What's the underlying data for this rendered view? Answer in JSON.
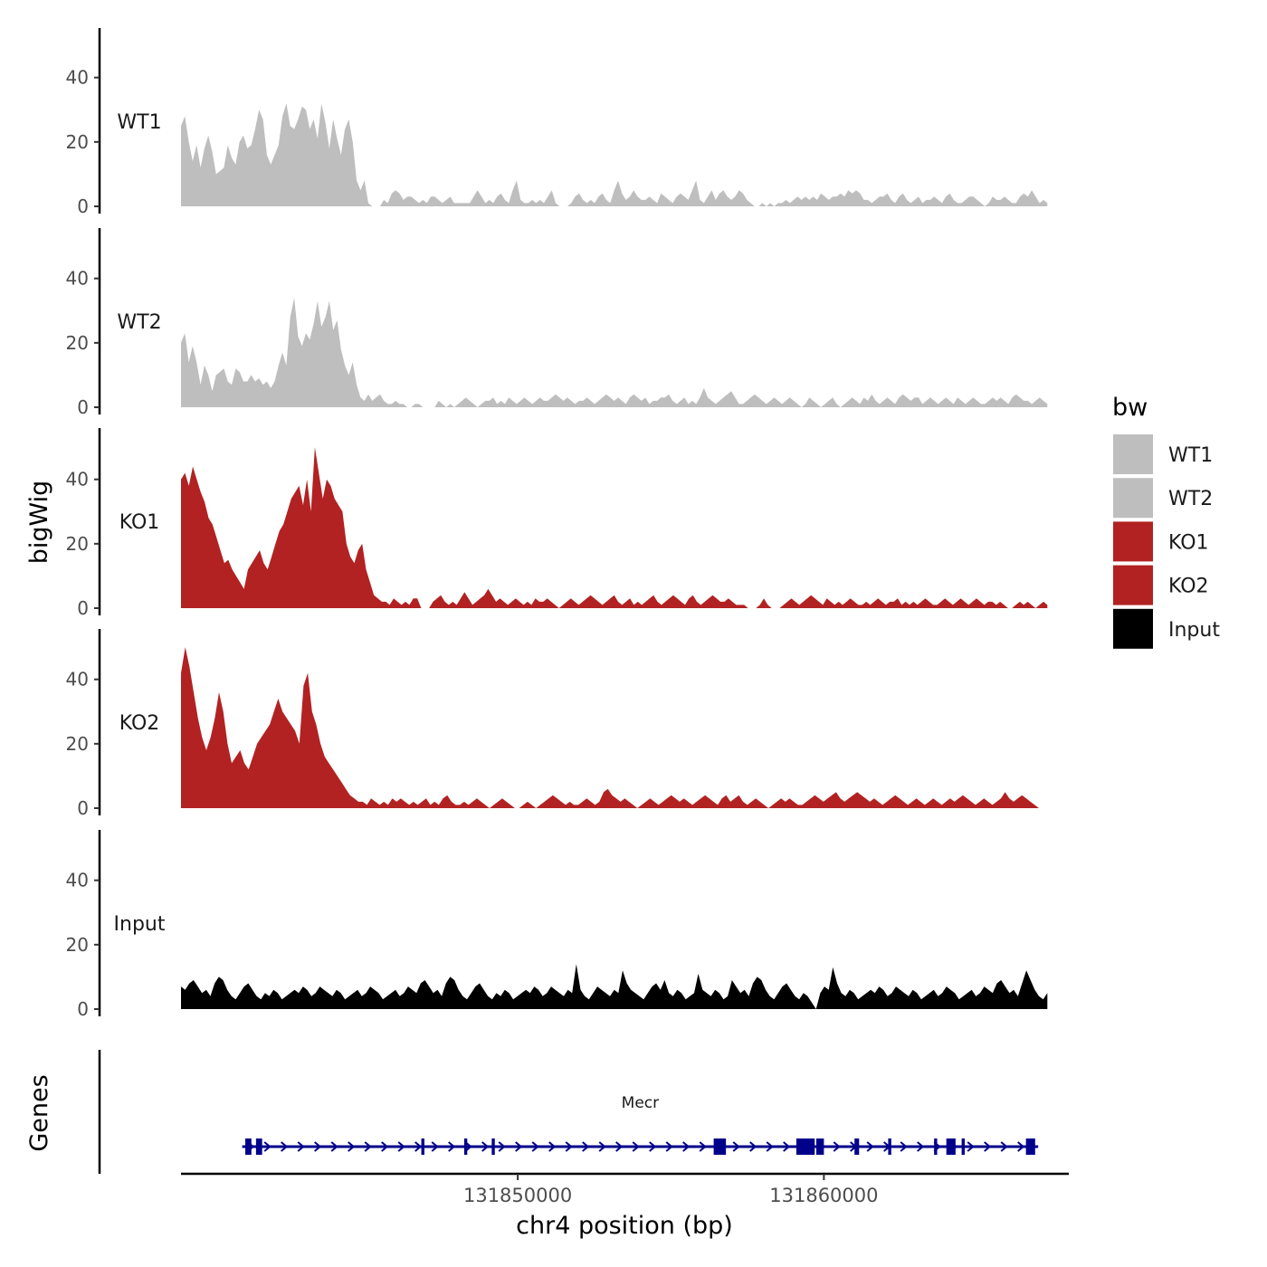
{
  "chart_data": {
    "type": "area",
    "ylabel": "bigWig",
    "xlabel": "chr4 position (bp)",
    "genes_label": "Genes",
    "xlim": [
      131839000,
      131868000
    ],
    "x_start": 131839000,
    "x_end": 131867300,
    "ylim": [
      0,
      55
    ],
    "yticks": [
      0,
      20,
      40
    ],
    "xticks": [
      {
        "value": 131850000,
        "label": "131850000"
      },
      {
        "value": 131860000,
        "label": "131860000"
      }
    ],
    "colors": {
      "WT": "#bebebe",
      "KO": "#b22222",
      "Input": "#000000",
      "gene": "#00008b"
    },
    "legend": {
      "title": "bw",
      "position": "right",
      "items": [
        {
          "label": "WT1",
          "color": "#bebebe"
        },
        {
          "label": "WT2",
          "color": "#bebebe"
        },
        {
          "label": "KO1",
          "color": "#b22222"
        },
        {
          "label": "KO2",
          "color": "#b22222"
        },
        {
          "label": "Input",
          "color": "#000000"
        }
      ]
    },
    "series": [
      {
        "name": "WT1",
        "color": "#bebebe",
        "values": [
          25,
          28,
          20,
          14,
          19,
          12,
          18,
          22,
          17,
          10,
          11,
          12,
          19,
          15,
          13,
          20,
          22,
          18,
          19,
          24,
          30,
          27,
          16,
          13,
          16,
          19,
          28,
          32,
          25,
          24,
          27,
          31,
          30,
          24,
          27,
          21,
          32,
          26,
          18,
          27,
          21,
          16,
          24,
          27,
          20,
          8,
          5,
          8,
          1,
          0,
          0,
          0,
          2,
          1,
          4,
          5,
          4,
          2,
          3,
          3,
          2,
          1,
          2,
          1,
          3,
          3,
          2,
          1,
          2,
          3,
          1,
          1,
          1,
          1,
          1,
          3,
          5,
          3,
          1,
          2,
          1,
          3,
          4,
          2,
          1,
          5,
          8,
          2,
          1,
          1,
          2,
          1,
          2,
          1,
          3,
          5,
          1,
          0,
          0,
          0,
          1,
          3,
          4,
          2,
          1,
          2,
          1,
          3,
          4,
          2,
          1,
          5,
          8,
          4,
          2,
          3,
          5,
          3,
          2,
          2,
          3,
          2,
          1,
          4,
          3,
          2,
          1,
          3,
          4,
          3,
          2,
          5,
          8,
          2,
          1,
          3,
          5,
          2,
          4,
          5,
          3,
          2,
          3,
          5,
          4,
          2,
          1,
          0,
          0,
          1,
          0,
          1,
          0,
          1,
          1,
          2,
          1,
          2,
          3,
          2,
          3,
          2,
          3,
          2,
          4,
          3,
          2,
          3,
          3,
          4,
          3,
          5,
          4,
          5,
          4,
          2,
          2,
          1,
          2,
          3,
          3,
          4,
          2,
          1,
          3,
          4,
          2,
          1,
          2,
          3,
          1,
          2,
          2,
          3,
          2,
          1,
          3,
          4,
          2,
          1,
          1,
          2,
          3,
          3,
          2,
          1,
          0,
          1,
          3,
          2,
          2,
          3,
          2,
          1,
          1,
          3,
          4,
          3,
          5,
          3,
          1,
          2,
          1
        ]
      },
      {
        "name": "WT2",
        "color": "#bebebe",
        "values": [
          20,
          23,
          14,
          19,
          14,
          7,
          13,
          10,
          5,
          10,
          11,
          12,
          8,
          7,
          12,
          11,
          8,
          8,
          10,
          8,
          9,
          7,
          8,
          6,
          8,
          13,
          17,
          13,
          28,
          34,
          22,
          19,
          23,
          21,
          26,
          33,
          25,
          28,
          33,
          24,
          27,
          18,
          13,
          10,
          14,
          7,
          3,
          2,
          4,
          2,
          3,
          4,
          2,
          1,
          1,
          2,
          1,
          1,
          0,
          0,
          1,
          1,
          0,
          0,
          0,
          0,
          2,
          1,
          0,
          1,
          0,
          1,
          2,
          3,
          2,
          1,
          0,
          1,
          2,
          2,
          3,
          1,
          2,
          1,
          3,
          2,
          1,
          2,
          3,
          2,
          1,
          2,
          3,
          2,
          2,
          3,
          4,
          3,
          2,
          3,
          2,
          1,
          2,
          2,
          3,
          2,
          1,
          2,
          3,
          4,
          3,
          2,
          3,
          2,
          1,
          3,
          4,
          3,
          2,
          3,
          1,
          2,
          2,
          3,
          3,
          4,
          2,
          1,
          2,
          3,
          1,
          2,
          1,
          3,
          6,
          3,
          2,
          1,
          2,
          3,
          4,
          5,
          3,
          1,
          1,
          2,
          3,
          4,
          3,
          2,
          1,
          2,
          3,
          2,
          1,
          2,
          3,
          2,
          1,
          0,
          1,
          3,
          2,
          1,
          0,
          1,
          2,
          3,
          1,
          0,
          1,
          2,
          3,
          2,
          1,
          3,
          2,
          4,
          2,
          1,
          2,
          3,
          2,
          1,
          3,
          4,
          3,
          2,
          3,
          3,
          1,
          2,
          3,
          2,
          1,
          2,
          3,
          2,
          1,
          3,
          2,
          1,
          2,
          3,
          2,
          1,
          1,
          2,
          3,
          2,
          3,
          2,
          1,
          3,
          4,
          3,
          2,
          2,
          1,
          2,
          3,
          2,
          1
        ]
      },
      {
        "name": "KO1",
        "color": "#b22222",
        "values": [
          40,
          42,
          38,
          44,
          40,
          36,
          33,
          28,
          26,
          22,
          18,
          14,
          15,
          12,
          10,
          8,
          6,
          12,
          14,
          16,
          18,
          14,
          12,
          16,
          20,
          24,
          26,
          30,
          34,
          36,
          38,
          32,
          40,
          30,
          50,
          42,
          34,
          40,
          38,
          34,
          32,
          30,
          20,
          16,
          14,
          18,
          20,
          12,
          8,
          4,
          3,
          2,
          2,
          1,
          3,
          2,
          1,
          2,
          1,
          3,
          3,
          0,
          0,
          0,
          2,
          3,
          4,
          2,
          1,
          2,
          1,
          3,
          5,
          3,
          1,
          2,
          3,
          4,
          6,
          4,
          2,
          3,
          2,
          1,
          2,
          3,
          2,
          1,
          2,
          1,
          3,
          2,
          2,
          3,
          2,
          1,
          0,
          1,
          2,
          3,
          2,
          1,
          2,
          3,
          4,
          3,
          2,
          1,
          2,
          3,
          4,
          2,
          1,
          2,
          3,
          1,
          2,
          1,
          2,
          3,
          4,
          2,
          1,
          2,
          3,
          4,
          3,
          2,
          1,
          3,
          4,
          2,
          1,
          2,
          3,
          4,
          3,
          2,
          2,
          3,
          2,
          1,
          1,
          1,
          0,
          0,
          0,
          1,
          3,
          1,
          0,
          0,
          0,
          1,
          2,
          3,
          2,
          1,
          2,
          3,
          4,
          3,
          2,
          1,
          3,
          2,
          1,
          2,
          1,
          2,
          3,
          2,
          1,
          1,
          2,
          1,
          2,
          3,
          2,
          1,
          2,
          2,
          3,
          1,
          2,
          1,
          2,
          1,
          2,
          3,
          2,
          1,
          1,
          2,
          3,
          2,
          1,
          2,
          3,
          2,
          1,
          2,
          3,
          2,
          1,
          2,
          2,
          1,
          2,
          1,
          0,
          0,
          1,
          2,
          1,
          2,
          1,
          0,
          1,
          2,
          1
        ]
      },
      {
        "name": "KO2",
        "color": "#b22222",
        "values": [
          42,
          50,
          44,
          36,
          28,
          22,
          18,
          22,
          28,
          36,
          30,
          20,
          14,
          16,
          18,
          14,
          12,
          16,
          20,
          22,
          24,
          26,
          30,
          34,
          30,
          28,
          26,
          24,
          20,
          38,
          42,
          30,
          26,
          20,
          16,
          14,
          12,
          10,
          8,
          6,
          4,
          3,
          2,
          2,
          1,
          3,
          2,
          1,
          2,
          1,
          3,
          2,
          3,
          2,
          1,
          2,
          1,
          2,
          3,
          1,
          2,
          1,
          3,
          4,
          2,
          1,
          1,
          2,
          1,
          2,
          3,
          2,
          1,
          0,
          1,
          2,
          3,
          2,
          1,
          0,
          0,
          1,
          2,
          1,
          0,
          1,
          2,
          3,
          4,
          3,
          2,
          1,
          2,
          1,
          1,
          2,
          3,
          2,
          1,
          2,
          5,
          6,
          4,
          3,
          2,
          3,
          2,
          1,
          0,
          1,
          2,
          3,
          2,
          1,
          2,
          3,
          4,
          3,
          2,
          3,
          2,
          1,
          2,
          3,
          4,
          3,
          2,
          1,
          3,
          4,
          2,
          3,
          4,
          2,
          1,
          2,
          3,
          2,
          1,
          0,
          1,
          2,
          3,
          2,
          3,
          2,
          1,
          1,
          2,
          3,
          4,
          3,
          2,
          3,
          4,
          5,
          3,
          2,
          3,
          4,
          5,
          4,
          3,
          2,
          3,
          2,
          1,
          2,
          3,
          4,
          3,
          2,
          1,
          2,
          3,
          2,
          1,
          2,
          3,
          2,
          1,
          2,
          3,
          2,
          3,
          4,
          3,
          2,
          1,
          2,
          3,
          2,
          1,
          2,
          3,
          5,
          3,
          2,
          3,
          4,
          3,
          2,
          1,
          0,
          0,
          0
        ]
      },
      {
        "name": "Input",
        "color": "#000000",
        "values": [
          7,
          6,
          8,
          9,
          7,
          5,
          6,
          4,
          8,
          10,
          9,
          6,
          4,
          3,
          5,
          7,
          8,
          6,
          4,
          3,
          5,
          4,
          6,
          5,
          3,
          4,
          5,
          6,
          5,
          7,
          6,
          4,
          5,
          7,
          6,
          5,
          4,
          6,
          5,
          3,
          4,
          5,
          6,
          4,
          5,
          7,
          6,
          5,
          3,
          4,
          5,
          6,
          4,
          5,
          7,
          6,
          5,
          8,
          9,
          7,
          5,
          6,
          4,
          8,
          10,
          9,
          6,
          4,
          3,
          5,
          7,
          8,
          6,
          4,
          3,
          5,
          4,
          6,
          5,
          3,
          4,
          5,
          6,
          5,
          7,
          6,
          4,
          5,
          7,
          6,
          5,
          4,
          6,
          5,
          14,
          6,
          4,
          3,
          5,
          7,
          6,
          5,
          4,
          6,
          5,
          12,
          8,
          6,
          5,
          4,
          3,
          5,
          7,
          8,
          6,
          9,
          5,
          4,
          6,
          5,
          3,
          4,
          5,
          11,
          6,
          5,
          4,
          6,
          5,
          3,
          4,
          9,
          7,
          5,
          6,
          4,
          8,
          10,
          9,
          6,
          4,
          3,
          5,
          7,
          8,
          6,
          4,
          3,
          5,
          4,
          2,
          0,
          5,
          7,
          6,
          13,
          8,
          5,
          4,
          6,
          5,
          3,
          4,
          5,
          6,
          5,
          7,
          6,
          4,
          5,
          7,
          6,
          5,
          4,
          6,
          5,
          3,
          4,
          5,
          6,
          4,
          5,
          7,
          6,
          5,
          3,
          4,
          5,
          6,
          4,
          5,
          7,
          6,
          5,
          8,
          9,
          7,
          5,
          6,
          4,
          8,
          12,
          9,
          6,
          4,
          3,
          5
        ]
      }
    ],
    "gene": {
      "name": "Mecr",
      "strand": "+",
      "start": 131841000,
      "end": 131867000,
      "exons": [
        {
          "start": 131841100,
          "end": 131841300
        },
        {
          "start": 131841450,
          "end": 131841650
        },
        {
          "start": 131846850,
          "end": 131846950
        },
        {
          "start": 131848250,
          "end": 131848350
        },
        {
          "start": 131849150,
          "end": 131849250
        },
        {
          "start": 131856400,
          "end": 131856800
        },
        {
          "start": 131859100,
          "end": 131859700
        },
        {
          "start": 131859750,
          "end": 131860000
        },
        {
          "start": 131861000,
          "end": 131861150
        },
        {
          "start": 131862100,
          "end": 131862200
        },
        {
          "start": 131863600,
          "end": 131863700
        },
        {
          "start": 131864000,
          "end": 131864300
        },
        {
          "start": 131864500,
          "end": 131864600
        },
        {
          "start": 131866600,
          "end": 131866900
        }
      ]
    }
  }
}
